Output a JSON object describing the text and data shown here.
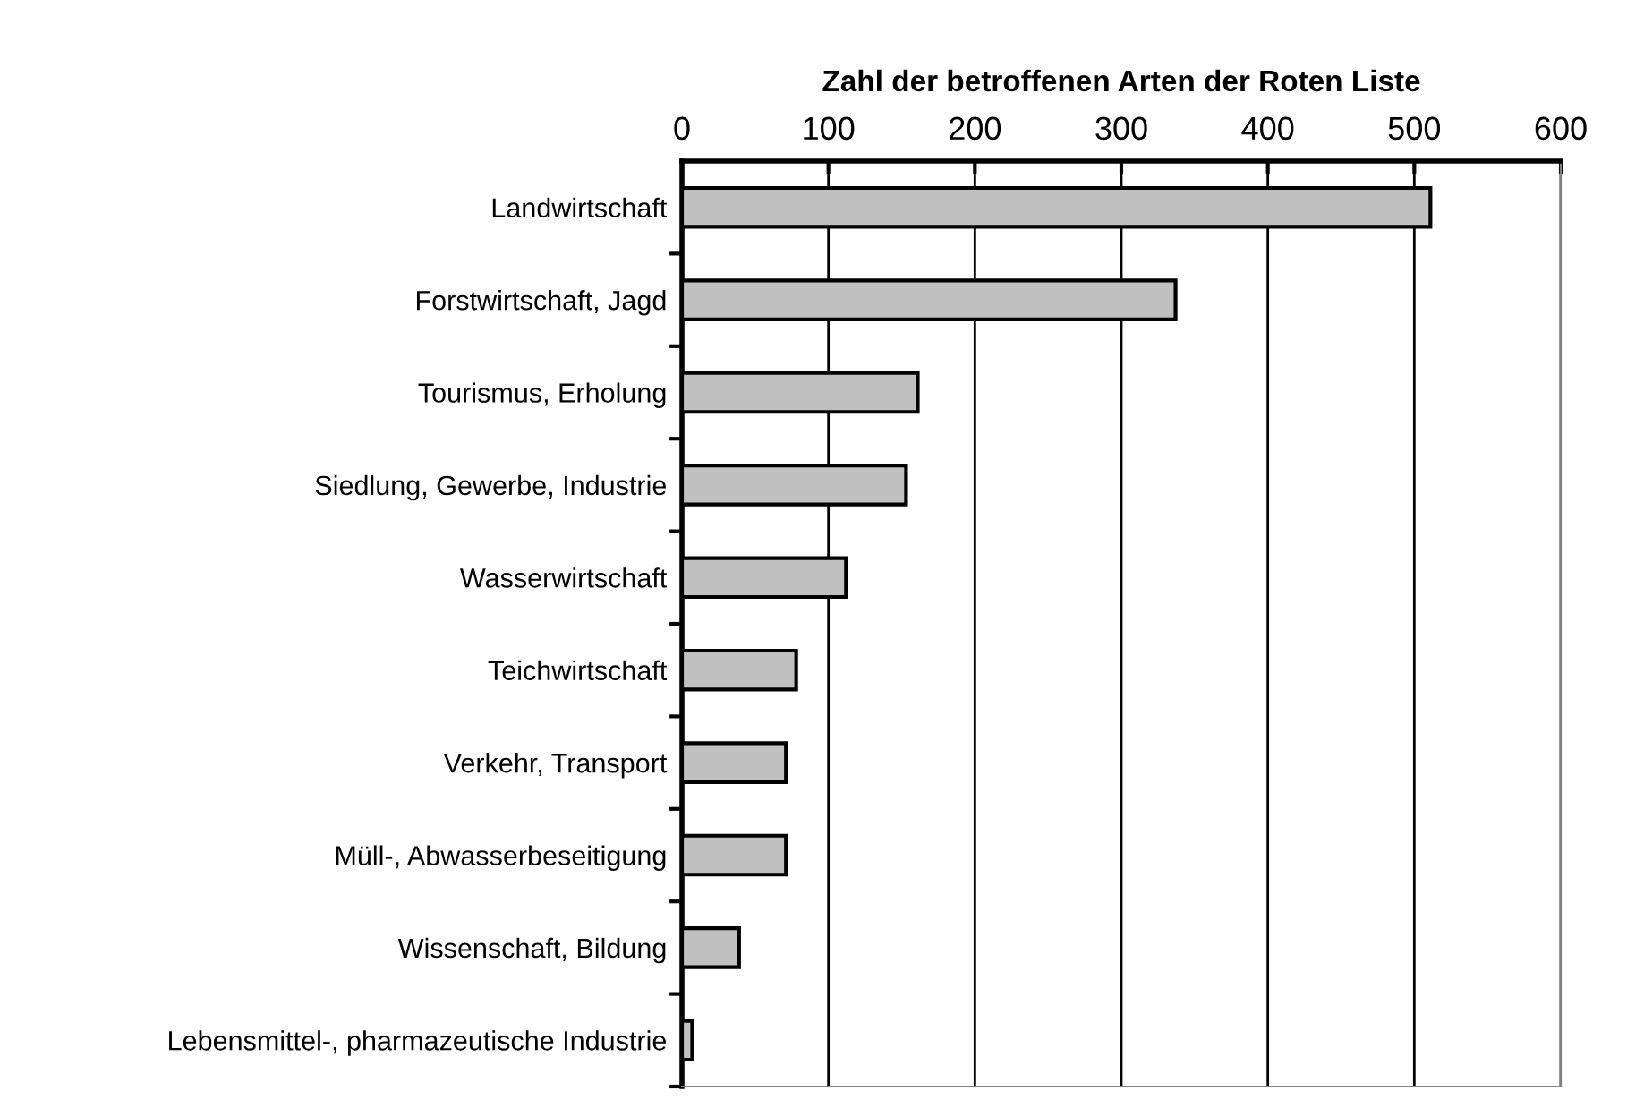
{
  "chart_data": {
    "type": "bar",
    "orientation": "horizontal",
    "xlabel": "Zahl der betroffenen Arten der Roten Liste",
    "categories": [
      "Landwirtschaft",
      "Forstwirtschaft, Jagd",
      "Tourismus, Erholung",
      "Siedlung, Gewerbe, Industrie",
      "Wasserwirtschaft",
      "Teichwirtschaft",
      "Verkehr, Transport",
      "Müll-, Abwasserbeseitigung",
      "Wissenschaft, Bildung",
      "Lebensmittel-, pharmazeutische Industrie"
    ],
    "values": [
      511,
      337,
      161,
      153,
      112,
      78,
      71,
      71,
      39,
      7
    ],
    "color": "#c0c0c0",
    "xlim": [
      0,
      600
    ],
    "xticks": [
      0,
      100,
      200,
      300,
      400,
      500,
      600
    ],
    "grid": "x"
  }
}
